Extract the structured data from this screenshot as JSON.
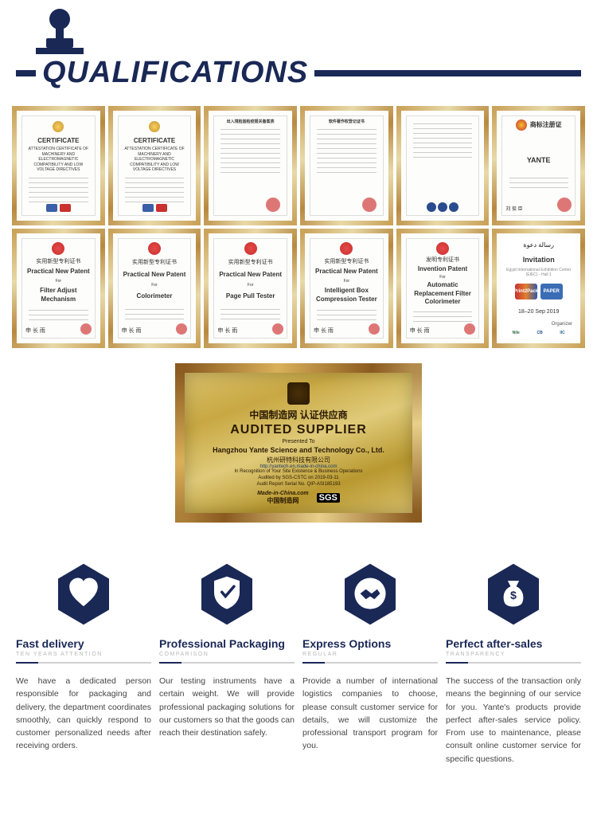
{
  "colors": {
    "navy": "#1a2856",
    "gold_light": "#e8d9a8",
    "gold_dark": "#b8893f",
    "plaque_bg": "#d9c06a"
  },
  "header": {
    "title": "QUALIFICATIONS"
  },
  "cert_rows": [
    [
      {
        "type": "ce",
        "title": "CERTIFICATE",
        "subtitle": "ATTESTATION CERTIFICATE OF MACHINERY AND ELECTROMAGNETIC COMPATIBILITY AND LOW VOLTAGE DIRECTIVES"
      },
      {
        "type": "ce",
        "title": "CERTIFICATE",
        "subtitle": "ATTESTATION CERTIFICATE OF MACHINERY AND ELECTROMAGNETIC COMPATIBILITY AND LOW VOLTAGE DIRECTIVES"
      },
      {
        "type": "form",
        "header_cn": "出入境检验检疫报关备案表"
      },
      {
        "type": "form",
        "header_cn": "软件著作权登记证书"
      },
      {
        "type": "iso",
        "header_cn": ""
      },
      {
        "type": "trademark",
        "header_cn": "商标注册证",
        "brand": "YANTE"
      }
    ],
    [
      {
        "type": "patent",
        "header_cn": "实用新型专利证书",
        "en1": "Practical New Patent",
        "for": "For",
        "subject": "Filter Adjust Mechanism"
      },
      {
        "type": "patent",
        "header_cn": "实用新型专利证书",
        "en1": "Practical New Patent",
        "for": "For",
        "subject": "Colorimeter"
      },
      {
        "type": "patent",
        "header_cn": "实用新型专利证书",
        "en1": "Practical New Patent",
        "for": "For",
        "subject": "Page Pull Tester"
      },
      {
        "type": "patent",
        "header_cn": "实用新型专利证书",
        "en1": "Practical New Patent",
        "for": "For",
        "subject": "Intelligent Box Compression Tester"
      },
      {
        "type": "patent",
        "header_cn": "发明专利证书",
        "en1": "Invention Patent",
        "for": "For",
        "subject": "Automatic Replacement Filter Colorimeter"
      },
      {
        "type": "invitation",
        "arabic": "رسالة دعوة",
        "title": "Invitation",
        "logo1": "Print2Pack",
        "logo2": "PAPER",
        "date": "18–20 Sep 2019",
        "org": "Organizer",
        "b1": "Nile",
        "b2": "CB",
        "b3": "IIC"
      }
    ]
  ],
  "plaque": {
    "cn_header": "中国制造网  认证供应商",
    "main": "AUDITED SUPPLIER",
    "presented": "Presented To",
    "company_en": "Hangzhou Yante Science and Technology Co., Ltd.",
    "company_cn": "杭州研特科技有限公司",
    "url": "http://yantech.en.made-in-china.com",
    "line1": "In Recognition of Your Site Existence & Business Operations",
    "line2": "Audited by SGS-CSTC on 2019-03-11",
    "line3": "Audit Report Serial No.   QIP-ASI185193",
    "mic_en": "Made-in-China.com",
    "mic_cn": "中国制造网",
    "sgs": "SGS"
  },
  "features": [
    {
      "icon": "heart",
      "title": "Fast delivery",
      "subtitle": "TEN YEARS ATTENTION",
      "desc": "We have a dedicated person responsible for packaging and delivery, the department coordinates smoothly, can quickly respond to customer personalized needs after receiving orders."
    },
    {
      "icon": "shield",
      "title": "Professional Packaging",
      "subtitle": "COMPARISON",
      "desc": "Our testing instruments have a certain weight. We will provide professional packaging solutions for our customers so that the goods can reach their destination safely."
    },
    {
      "icon": "handshake",
      "title": "Express Options",
      "subtitle": "REGULAR",
      "desc": "Provide a number of international logistics companies to choose, please consult customer service for details, we will customize the professional transport program for you."
    },
    {
      "icon": "moneybag",
      "title": "Perfect after-sales",
      "subtitle": "TRANSPARENCY",
      "desc": "The success of the transaction only means the beginning of our service for you. Yante's products provide perfect after-sales service policy. From use to maintenance, please consult online customer service for specific questions."
    }
  ]
}
